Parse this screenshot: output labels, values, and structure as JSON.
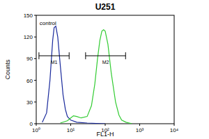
{
  "chart_data": {
    "type": "line",
    "title": "U251",
    "x_label": "FL1-H",
    "y_label": "Counts",
    "log": "x",
    "xlim": [
      1,
      10000
    ],
    "xticks": [
      {
        "value": 1,
        "label": "10⁰"
      },
      {
        "value": 10,
        "label": "10¹"
      },
      {
        "value": 100,
        "label": "10²"
      },
      {
        "value": 1000,
        "label": "10³"
      },
      {
        "value": 10000,
        "label": "10⁴"
      }
    ],
    "ylim": [
      0,
      150
    ],
    "yticks": [
      0,
      30,
      60,
      90,
      120,
      150
    ],
    "series": [
      {
        "name": "control",
        "color": "#1a2a9c",
        "x": [
          1.5,
          2,
          2.5,
          3,
          3.3,
          3.7,
          4.2,
          5,
          6,
          7,
          8,
          10,
          15,
          30,
          100
        ],
        "values": [
          2,
          15,
          60,
          115,
          133,
          135,
          120,
          80,
          40,
          20,
          10,
          5,
          2,
          1,
          0
        ]
      },
      {
        "color": "#33cc33",
        "x": [
          5,
          8,
          10,
          12,
          15,
          20,
          30,
          40,
          50,
          60,
          70,
          80,
          90,
          100,
          120,
          150,
          200,
          250,
          300,
          400,
          600
        ],
        "values": [
          1,
          4,
          8,
          11,
          10,
          8,
          10,
          25,
          55,
          90,
          115,
          128,
          130,
          128,
          110,
          70,
          30,
          12,
          5,
          2,
          0
        ]
      }
    ],
    "annotations": [
      {
        "text": "control",
        "x": 1.25,
        "y": 137
      }
    ],
    "markers": [
      {
        "label": "M1",
        "x": [
          1.2,
          9
        ],
        "y": 94
      },
      {
        "label": "M2",
        "x": [
          27,
          390
        ],
        "y": 94
      }
    ]
  }
}
